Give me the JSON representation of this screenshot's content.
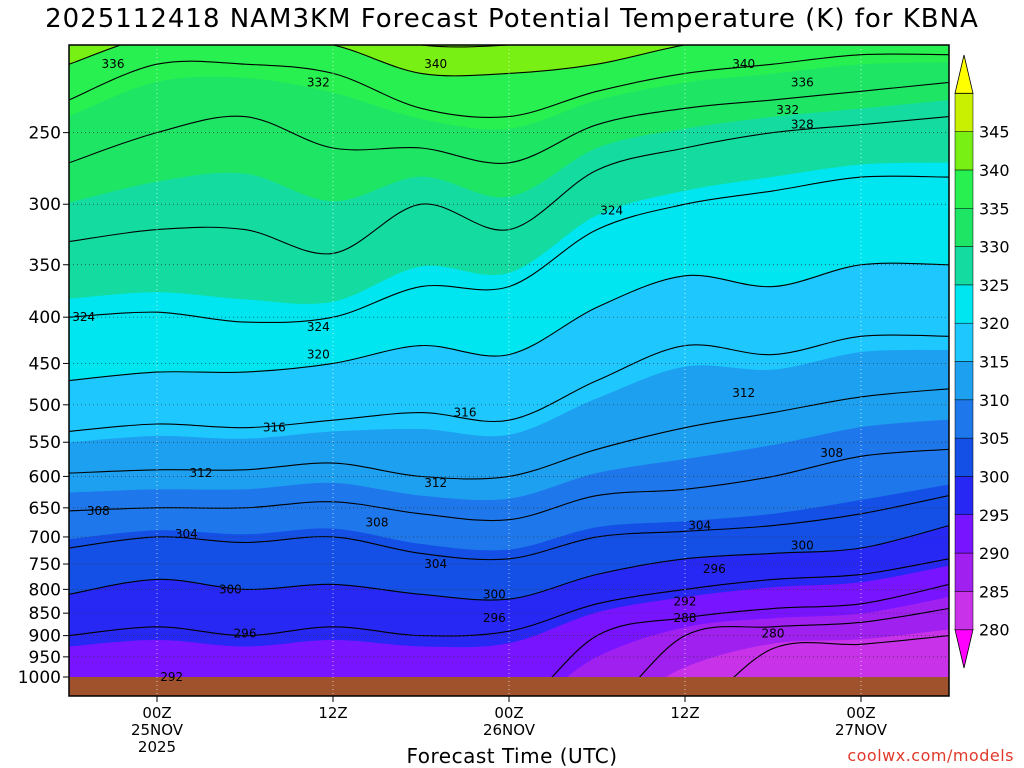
{
  "title": "2025112418 NAM3KM Forecast Potential Temperature (K) for KBNA",
  "credit": "coolwx.com/models",
  "chart_data": {
    "type": "heatmap",
    "title": "2025112418 NAM3KM Forecast Potential Temperature (K) for KBNA",
    "xlabel": "Forecast Time (UTC)",
    "ylabel": "",
    "x_unit": "forecast hours from 2025-11-24 18Z",
    "xlim": [
      0,
      60
    ],
    "y_unit": "hPa",
    "ylim": [
      1000,
      200
    ],
    "y_ticks": [
      250,
      300,
      350,
      400,
      450,
      500,
      550,
      600,
      650,
      700,
      750,
      800,
      850,
      900,
      950,
      1000
    ],
    "x_ticks": [
      {
        "x": 6,
        "lines": [
          "00Z",
          "25NOV",
          "2025"
        ]
      },
      {
        "x": 18,
        "lines": [
          "12Z"
        ]
      },
      {
        "x": 30,
        "lines": [
          "00Z",
          "26NOV"
        ]
      },
      {
        "x": 42,
        "lines": [
          "12Z"
        ]
      },
      {
        "x": 54,
        "lines": [
          "00Z",
          "27NOV"
        ]
      }
    ],
    "grid": true,
    "colorbar": {
      "position": "right",
      "ticks": [
        280,
        285,
        290,
        295,
        300,
        305,
        310,
        315,
        320,
        325,
        330,
        335,
        340,
        345
      ],
      "colors": [
        "#ff00ff",
        "#c832e8",
        "#a020f0",
        "#7814ff",
        "#2828f5",
        "#1450e6",
        "#1e78eb",
        "#1ea0f0",
        "#1ec8ff",
        "#00e6f0",
        "#14dca0",
        "#1ee664",
        "#28f050",
        "#78f014",
        "#c8f000",
        "#ffff00"
      ]
    },
    "x_profiles": [
      0,
      6,
      12,
      18,
      24,
      30,
      36,
      42,
      48,
      54,
      60
    ],
    "contour_levels": [
      280,
      284,
      288,
      292,
      296,
      300,
      304,
      308,
      312,
      316,
      320,
      324,
      328,
      332,
      336,
      340,
      344
    ],
    "profiles": [
      {
        "x": 0,
        "levels": [
          {
            "theta": 292,
            "p": 1000
          },
          {
            "theta": 296,
            "p": 900
          },
          {
            "theta": 300,
            "p": 810
          },
          {
            "theta": 304,
            "p": 720
          },
          {
            "theta": 308,
            "p": 655
          },
          {
            "theta": 312,
            "p": 595
          },
          {
            "theta": 316,
            "p": 535
          },
          {
            "theta": 320,
            "p": 470
          },
          {
            "theta": 324,
            "p": 400
          },
          {
            "theta": 328,
            "p": 330
          },
          {
            "theta": 332,
            "p": 270
          },
          {
            "theta": 336,
            "p": 230
          },
          {
            "theta": 340,
            "p": 210
          },
          {
            "theta": 344,
            "p": 195
          }
        ]
      },
      {
        "x": 6,
        "levels": [
          {
            "theta": 292,
            "p": 1000
          },
          {
            "theta": 296,
            "p": 880
          },
          {
            "theta": 300,
            "p": 780
          },
          {
            "theta": 304,
            "p": 700
          },
          {
            "theta": 308,
            "p": 650
          },
          {
            "theta": 312,
            "p": 590
          },
          {
            "theta": 316,
            "p": 525
          },
          {
            "theta": 320,
            "p": 460
          },
          {
            "theta": 324,
            "p": 395
          },
          {
            "theta": 328,
            "p": 320
          },
          {
            "theta": 332,
            "p": 250
          },
          {
            "theta": 336,
            "p": 210
          },
          {
            "theta": 340,
            "p": 195
          },
          {
            "theta": 344,
            "p": 185
          }
        ]
      },
      {
        "x": 12,
        "levels": [
          {
            "theta": 292,
            "p": 1000
          },
          {
            "theta": 296,
            "p": 900
          },
          {
            "theta": 300,
            "p": 800
          },
          {
            "theta": 304,
            "p": 710
          },
          {
            "theta": 308,
            "p": 650
          },
          {
            "theta": 312,
            "p": 590
          },
          {
            "theta": 316,
            "p": 530
          },
          {
            "theta": 320,
            "p": 460
          },
          {
            "theta": 324,
            "p": 405
          },
          {
            "theta": 328,
            "p": 320
          },
          {
            "theta": 332,
            "p": 240
          },
          {
            "theta": 336,
            "p": 210
          },
          {
            "theta": 340,
            "p": 195
          },
          {
            "theta": 344,
            "p": 185
          }
        ]
      },
      {
        "x": 18,
        "levels": [
          {
            "theta": 292,
            "p": 1000
          },
          {
            "theta": 296,
            "p": 880
          },
          {
            "theta": 300,
            "p": 790
          },
          {
            "theta": 304,
            "p": 700
          },
          {
            "theta": 308,
            "p": 640
          },
          {
            "theta": 312,
            "p": 580
          },
          {
            "theta": 316,
            "p": 520
          },
          {
            "theta": 320,
            "p": 450
          },
          {
            "theta": 324,
            "p": 400
          },
          {
            "theta": 328,
            "p": 340
          },
          {
            "theta": 332,
            "p": 260
          },
          {
            "theta": 336,
            "p": 215
          },
          {
            "theta": 340,
            "p": 200
          },
          {
            "theta": 344,
            "p": 190
          }
        ]
      },
      {
        "x": 24,
        "levels": [
          {
            "theta": 292,
            "p": 1000
          },
          {
            "theta": 296,
            "p": 900
          },
          {
            "theta": 300,
            "p": 810
          },
          {
            "theta": 304,
            "p": 730
          },
          {
            "theta": 308,
            "p": 660
          },
          {
            "theta": 312,
            "p": 600
          },
          {
            "theta": 316,
            "p": 510
          },
          {
            "theta": 320,
            "p": 430
          },
          {
            "theta": 324,
            "p": 370
          },
          {
            "theta": 328,
            "p": 300
          },
          {
            "theta": 332,
            "p": 260
          },
          {
            "theta": 336,
            "p": 235
          },
          {
            "theta": 340,
            "p": 215
          },
          {
            "theta": 344,
            "p": 200
          }
        ]
      },
      {
        "x": 30,
        "levels": [
          {
            "theta": 292,
            "p": 1000
          },
          {
            "theta": 296,
            "p": 890
          },
          {
            "theta": 300,
            "p": 820
          },
          {
            "theta": 304,
            "p": 740
          },
          {
            "theta": 308,
            "p": 670
          },
          {
            "theta": 312,
            "p": 600
          },
          {
            "theta": 316,
            "p": 520
          },
          {
            "theta": 320,
            "p": 440
          },
          {
            "theta": 324,
            "p": 370
          },
          {
            "theta": 328,
            "p": 320
          },
          {
            "theta": 332,
            "p": 270
          },
          {
            "theta": 336,
            "p": 240
          },
          {
            "theta": 340,
            "p": 215
          },
          {
            "theta": 344,
            "p": 200
          }
        ]
      },
      {
        "x": 36,
        "levels": [
          {
            "theta": 288,
            "p": 1000
          },
          {
            "theta": 292,
            "p": 900
          },
          {
            "theta": 296,
            "p": 830
          },
          {
            "theta": 300,
            "p": 770
          },
          {
            "theta": 304,
            "p": 700
          },
          {
            "theta": 308,
            "p": 630
          },
          {
            "theta": 312,
            "p": 560
          },
          {
            "theta": 316,
            "p": 470
          },
          {
            "theta": 320,
            "p": 390
          },
          {
            "theta": 324,
            "p": 320
          },
          {
            "theta": 328,
            "p": 275
          },
          {
            "theta": 332,
            "p": 245
          },
          {
            "theta": 336,
            "p": 225
          },
          {
            "theta": 340,
            "p": 210
          },
          {
            "theta": 344,
            "p": 195
          }
        ]
      },
      {
        "x": 42,
        "levels": [
          {
            "theta": 284,
            "p": 1000
          },
          {
            "theta": 288,
            "p": 900
          },
          {
            "theta": 292,
            "p": 860
          },
          {
            "theta": 296,
            "p": 800
          },
          {
            "theta": 300,
            "p": 740
          },
          {
            "theta": 304,
            "p": 690
          },
          {
            "theta": 308,
            "p": 620
          },
          {
            "theta": 312,
            "p": 530
          },
          {
            "theta": 316,
            "p": 430
          },
          {
            "theta": 320,
            "p": 360
          },
          {
            "theta": 324,
            "p": 300
          },
          {
            "theta": 328,
            "p": 260
          },
          {
            "theta": 332,
            "p": 235
          },
          {
            "theta": 336,
            "p": 215
          },
          {
            "theta": 340,
            "p": 200
          },
          {
            "theta": 344,
            "p": 190
          }
        ]
      },
      {
        "x": 48,
        "levels": [
          {
            "theta": 280,
            "p": 1000
          },
          {
            "theta": 284,
            "p": 930
          },
          {
            "theta": 288,
            "p": 880
          },
          {
            "theta": 292,
            "p": 840
          },
          {
            "theta": 296,
            "p": 780
          },
          {
            "theta": 300,
            "p": 730
          },
          {
            "theta": 304,
            "p": 680
          },
          {
            "theta": 308,
            "p": 600
          },
          {
            "theta": 312,
            "p": 510
          },
          {
            "theta": 316,
            "p": 440
          },
          {
            "theta": 320,
            "p": 370
          },
          {
            "theta": 324,
            "p": 290
          },
          {
            "theta": 328,
            "p": 250
          },
          {
            "theta": 332,
            "p": 230
          },
          {
            "theta": 336,
            "p": 210
          },
          {
            "theta": 340,
            "p": 195
          },
          {
            "theta": 344,
            "p": 185
          }
        ]
      },
      {
        "x": 54,
        "levels": [
          {
            "theta": 280,
            "p": 1000
          },
          {
            "theta": 284,
            "p": 920
          },
          {
            "theta": 288,
            "p": 870
          },
          {
            "theta": 292,
            "p": 830
          },
          {
            "theta": 296,
            "p": 770
          },
          {
            "theta": 300,
            "p": 720
          },
          {
            "theta": 304,
            "p": 660
          },
          {
            "theta": 308,
            "p": 570
          },
          {
            "theta": 312,
            "p": 490
          },
          {
            "theta": 316,
            "p": 420
          },
          {
            "theta": 320,
            "p": 350
          },
          {
            "theta": 324,
            "p": 280
          },
          {
            "theta": 328,
            "p": 245
          },
          {
            "theta": 332,
            "p": 225
          },
          {
            "theta": 336,
            "p": 205
          },
          {
            "theta": 340,
            "p": 195
          },
          {
            "theta": 344,
            "p": 185
          }
        ]
      },
      {
        "x": 60,
        "levels": [
          {
            "theta": 280,
            "p": 1000
          },
          {
            "theta": 284,
            "p": 900
          },
          {
            "theta": 288,
            "p": 840
          },
          {
            "theta": 292,
            "p": 790
          },
          {
            "theta": 296,
            "p": 740
          },
          {
            "theta": 300,
            "p": 680
          },
          {
            "theta": 304,
            "p": 630
          },
          {
            "theta": 308,
            "p": 560
          },
          {
            "theta": 312,
            "p": 480
          },
          {
            "theta": 316,
            "p": 420
          },
          {
            "theta": 320,
            "p": 350
          },
          {
            "theta": 324,
            "p": 280
          },
          {
            "theta": 328,
            "p": 240
          },
          {
            "theta": 332,
            "p": 220
          },
          {
            "theta": 336,
            "p": 205
          },
          {
            "theta": 340,
            "p": 195
          },
          {
            "theta": 344,
            "p": 185
          }
        ]
      }
    ],
    "contour_labels": [
      {
        "theta": 336,
        "x": 3,
        "p": 210
      },
      {
        "theta": 332,
        "x": 17,
        "p": 220
      },
      {
        "theta": 340,
        "x": 25,
        "p": 210
      },
      {
        "theta": 340,
        "x": 46,
        "p": 210
      },
      {
        "theta": 336,
        "x": 50,
        "p": 220
      },
      {
        "theta": 332,
        "x": 49,
        "p": 236
      },
      {
        "theta": 328,
        "x": 50,
        "p": 245
      },
      {
        "theta": 324,
        "x": 37,
        "p": 305
      },
      {
        "theta": 324,
        "x": 1,
        "p": 400
      },
      {
        "theta": 324,
        "x": 17,
        "p": 410
      },
      {
        "theta": 320,
        "x": 17,
        "p": 440
      },
      {
        "theta": 316,
        "x": 14,
        "p": 530
      },
      {
        "theta": 316,
        "x": 27,
        "p": 510
      },
      {
        "theta": 312,
        "x": 46,
        "p": 485
      },
      {
        "theta": 312,
        "x": 9,
        "p": 595
      },
      {
        "theta": 312,
        "x": 25,
        "p": 610
      },
      {
        "theta": 308,
        "x": 52,
        "p": 565
      },
      {
        "theta": 308,
        "x": 2,
        "p": 655
      },
      {
        "theta": 308,
        "x": 21,
        "p": 675
      },
      {
        "theta": 304,
        "x": 43,
        "p": 680
      },
      {
        "theta": 304,
        "x": 8,
        "p": 695
      },
      {
        "theta": 304,
        "x": 25,
        "p": 750
      },
      {
        "theta": 300,
        "x": 50,
        "p": 715
      },
      {
        "theta": 296,
        "x": 44,
        "p": 760
      },
      {
        "theta": 300,
        "x": 11,
        "p": 800
      },
      {
        "theta": 300,
        "x": 29,
        "p": 810
      },
      {
        "theta": 296,
        "x": 29,
        "p": 860
      },
      {
        "theta": 296,
        "x": 12,
        "p": 895
      },
      {
        "theta": 292,
        "x": 42,
        "p": 825
      },
      {
        "theta": 288,
        "x": 42,
        "p": 860
      },
      {
        "theta": 280,
        "x": 48,
        "p": 895
      },
      {
        "theta": 292,
        "x": 7,
        "p": 1000
      }
    ],
    "ground": {
      "color": "#a0522d",
      "p": 1000
    }
  }
}
